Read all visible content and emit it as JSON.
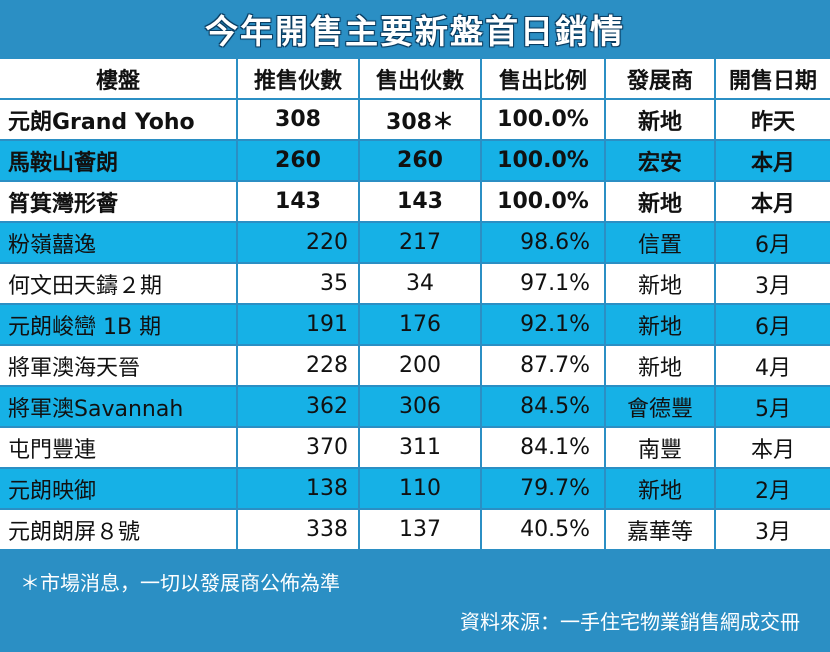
{
  "title": "今年開售主要新盤首日銷情",
  "headers": [
    "樓盤",
    "推售伙數",
    "售出伙數",
    "售出比例",
    "發展商",
    "開售日期"
  ],
  "rows": [
    {
      "name": "元朗Grand Yoho",
      "offered": "308",
      "sold": "308＊",
      "ratio": "100.0%",
      "developer": "新地",
      "date": "昨天"
    },
    {
      "name": "馬鞍山薈朗",
      "offered": "260",
      "sold": "260",
      "ratio": "100.0%",
      "developer": "宏安",
      "date": "本月"
    },
    {
      "name": "筲箕灣形薈",
      "offered": "143",
      "sold": "143",
      "ratio": "100.0%",
      "developer": "新地",
      "date": "本月"
    },
    {
      "name": "粉嶺囍逸",
      "offered": "220",
      "sold": "217",
      "ratio": "98.6%",
      "developer": "信置",
      "date": "6月"
    },
    {
      "name": "何文田天鑄２期",
      "offered": "35",
      "sold": "34",
      "ratio": "97.1%",
      "developer": "新地",
      "date": "3月"
    },
    {
      "name": "元朗峻巒 1B 期",
      "offered": "191",
      "sold": "176",
      "ratio": "92.1%",
      "developer": "新地",
      "date": "6月"
    },
    {
      "name": "將軍澳海天晉",
      "offered": "228",
      "sold": "200",
      "ratio": "87.7%",
      "developer": "新地",
      "date": "4月"
    },
    {
      "name": "將軍澳Savannah",
      "offered": "362",
      "sold": "306",
      "ratio": "84.5%",
      "developer": "會德豐",
      "date": "5月"
    },
    {
      "name": "屯門豐連",
      "offered": "370",
      "sold": "311",
      "ratio": "84.1%",
      "developer": "南豐",
      "date": "本月"
    },
    {
      "name": "元朗映御",
      "offered": "138",
      "sold": "110",
      "ratio": "79.7%",
      "developer": "新地",
      "date": "2月"
    },
    {
      "name": "元朗朗屏８號",
      "offered": "338",
      "sold": "137",
      "ratio": "40.5%",
      "developer": "嘉華等",
      "date": "3月"
    }
  ],
  "footnote": "＊市場消息，一切以發展商公佈為準",
  "source": "資料來源：一手住宅物業銷售網成交冊",
  "colors": {
    "background": "#2b8fc4",
    "row_blue": "#16b1e6",
    "row_white": "#ffffff"
  }
}
